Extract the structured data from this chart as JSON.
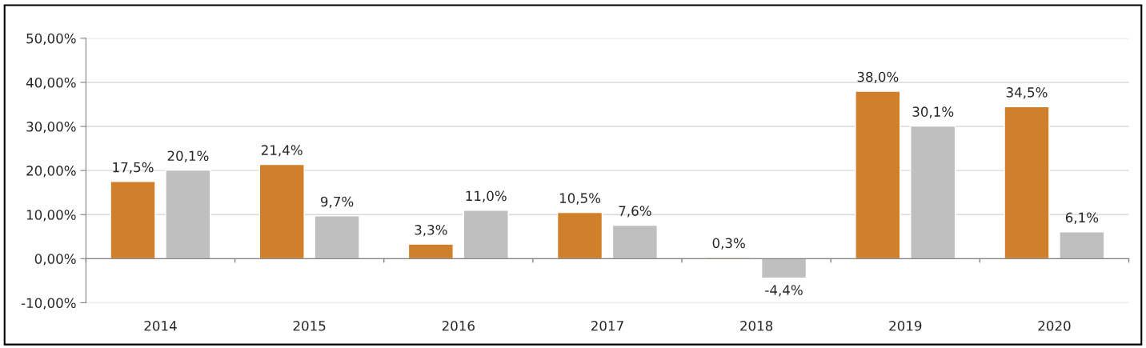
{
  "chart_data": {
    "type": "bar",
    "categories": [
      "2014",
      "2015",
      "2016",
      "2017",
      "2018",
      "2019",
      "2020"
    ],
    "series": [
      {
        "color": "#d07f2a",
        "values": [
          17.5,
          21.4,
          3.3,
          10.5,
          0.3,
          38.0,
          34.5
        ],
        "value_labels": [
          "17,5%",
          "21,4%",
          "3,3%",
          "10,5%",
          "0,3%",
          "38,0%",
          "34,5%"
        ]
      },
      {
        "color": "#bfbfbf",
        "values": [
          20.1,
          9.7,
          11.0,
          7.6,
          -4.4,
          30.1,
          6.1
        ],
        "value_labels": [
          "20,1%",
          "9,7%",
          "11,0%",
          "7,6%",
          "-4,4%",
          "30,1%",
          "6,1%"
        ]
      }
    ],
    "ylim": [
      -10,
      50
    ],
    "yticks": [
      {
        "value": -10,
        "label": "-10,00%"
      },
      {
        "value": 0,
        "label": "0,00%"
      },
      {
        "value": 10,
        "label": "10,00%"
      },
      {
        "value": 20,
        "label": "20,00%"
      },
      {
        "value": 30,
        "label": "30,00%"
      },
      {
        "value": 40,
        "label": "40,00%"
      },
      {
        "value": 50,
        "label": "50,00%"
      }
    ],
    "grid": "y"
  }
}
